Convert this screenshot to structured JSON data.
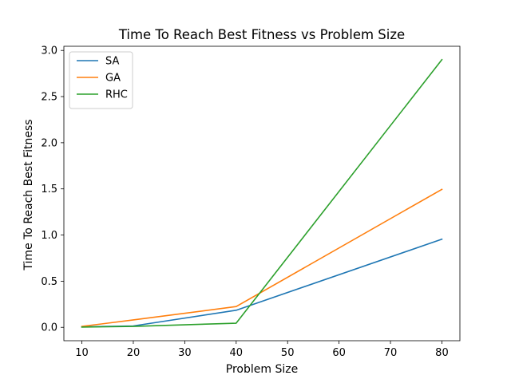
{
  "chart_data": {
    "type": "line",
    "title": "Time To Reach Best Fitness vs Problem Size",
    "xlabel": "Problem Size",
    "ylabel": "Time To Reach Best Fitness",
    "x": [
      10,
      20,
      40,
      80
    ],
    "xlim": [
      6.5,
      83.5
    ],
    "ylim": [
      -0.145,
      3.045
    ],
    "xticks": [
      10,
      20,
      30,
      40,
      50,
      60,
      70,
      80
    ],
    "yticks": [
      0.0,
      0.5,
      1.0,
      1.5,
      2.0,
      2.5,
      3.0
    ],
    "grid": false,
    "legend_position": "top-left",
    "series": [
      {
        "name": "SA",
        "color": "#1f77b4",
        "values": [
          0.005,
          0.015,
          0.185,
          0.955
        ]
      },
      {
        "name": "GA",
        "color": "#ff7f0e",
        "values": [
          0.01,
          0.08,
          0.225,
          1.495
        ]
      },
      {
        "name": "RHC",
        "color": "#2ca02c",
        "values": [
          0.003,
          0.01,
          0.045,
          2.9
        ]
      }
    ]
  }
}
